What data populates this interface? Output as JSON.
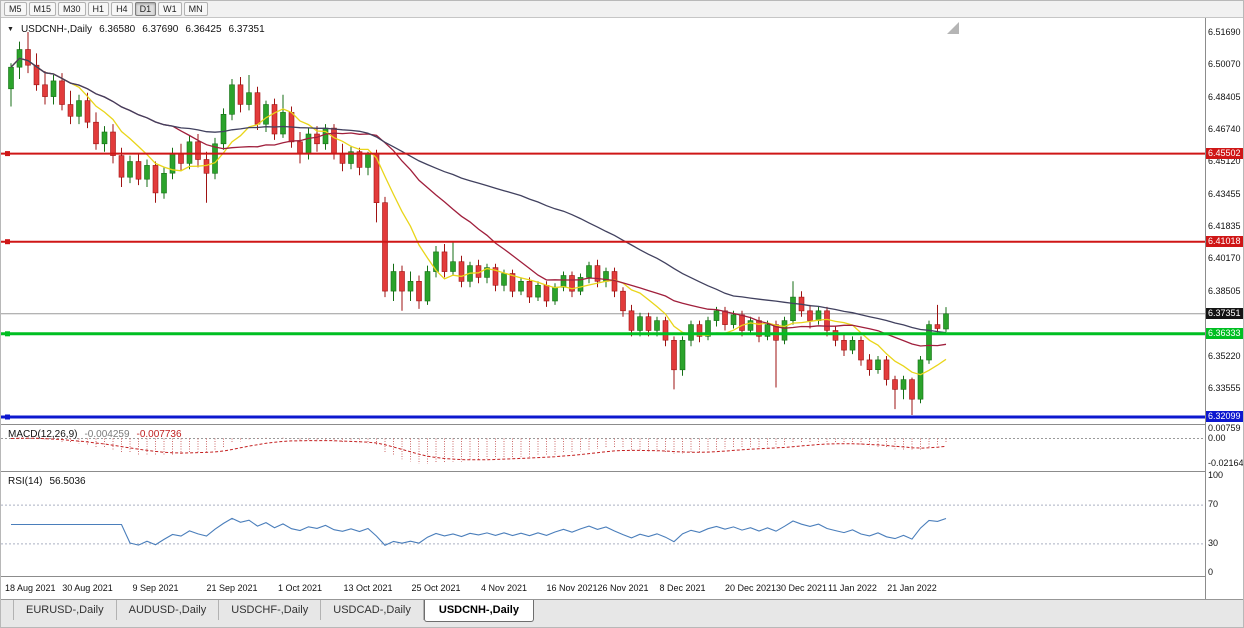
{
  "toolbar": {
    "timeframes": [
      {
        "label": "M5",
        "active": false
      },
      {
        "label": "M15",
        "active": false
      },
      {
        "label": "M30",
        "active": false
      },
      {
        "label": "H1",
        "active": false
      },
      {
        "label": "H4",
        "active": false
      },
      {
        "label": "D1",
        "active": true
      },
      {
        "label": "W1",
        "active": false
      },
      {
        "label": "MN",
        "active": false
      }
    ]
  },
  "chart": {
    "symbol_label": "USDCNH-,Daily",
    "ohlc": {
      "open": "6.36580",
      "high": "6.37690",
      "low": "6.36425",
      "close": "6.37351"
    },
    "colors": {
      "up_fill": "#2ba32b",
      "up_stroke": "#146e14",
      "down_fill": "#e23b3b",
      "down_stroke": "#9e1212"
    },
    "hlines": [
      {
        "price": 6.45502,
        "label": "6.45502",
        "color": "#cf1616",
        "width": 2
      },
      {
        "price": 6.41018,
        "label": "6.41018",
        "color": "#cf1616",
        "width": 2
      },
      {
        "price": 6.36333,
        "label": "6.36333",
        "color": "#00bf22",
        "width": 3
      },
      {
        "price": 6.32099,
        "label": "6.32099",
        "color": "#0d18cf",
        "width": 3
      }
    ],
    "current_price": {
      "price": 6.37351,
      "label": "6.37351",
      "line_color": "#9a9a9a",
      "badge_color": "#141414"
    },
    "price_ticks": [
      "6.51690",
      "6.50070",
      "6.48405",
      "6.46740",
      "6.45120",
      "6.43455",
      "6.41835",
      "6.40170",
      "6.38505",
      "6.35220",
      "6.33555"
    ],
    "ma": [
      {
        "period": 8,
        "color": "#e9d51a"
      },
      {
        "period": 20,
        "color": "#a01f3c"
      },
      {
        "period": 42,
        "color": "#41415f"
      }
    ]
  },
  "chart_data": {
    "type": "candlestick",
    "symbol": "USDCNH",
    "timeframe": "Daily",
    "y_range": [
      6.3174,
      6.525
    ],
    "candles": [
      [
        6.488,
        6.501,
        6.479,
        6.499
      ],
      [
        6.499,
        6.512,
        6.493,
        6.508
      ],
      [
        6.508,
        6.5169,
        6.496,
        6.5
      ],
      [
        6.5,
        6.506,
        6.487,
        6.49
      ],
      [
        6.49,
        6.497,
        6.48,
        6.484
      ],
      [
        6.484,
        6.495,
        6.48,
        6.492
      ],
      [
        6.492,
        6.496,
        6.477,
        6.48
      ],
      [
        6.48,
        6.487,
        6.47,
        6.474
      ],
      [
        6.474,
        6.485,
        6.47,
        6.482
      ],
      [
        6.482,
        6.486,
        6.468,
        6.471
      ],
      [
        6.471,
        6.476,
        6.457,
        6.46
      ],
      [
        6.46,
        6.469,
        6.456,
        6.466
      ],
      [
        6.466,
        6.47,
        6.45,
        6.454
      ],
      [
        6.454,
        6.458,
        6.438,
        6.443
      ],
      [
        6.443,
        6.454,
        6.44,
        6.451
      ],
      [
        6.451,
        6.455,
        6.439,
        6.442
      ],
      [
        6.442,
        6.452,
        6.438,
        6.449
      ],
      [
        6.449,
        6.451,
        6.43,
        6.435
      ],
      [
        6.435,
        6.448,
        6.432,
        6.445
      ],
      [
        6.445,
        6.458,
        6.442,
        6.455
      ],
      [
        6.455,
        6.46,
        6.446,
        6.45
      ],
      [
        6.45,
        6.464,
        6.447,
        6.461
      ],
      [
        6.461,
        6.465,
        6.448,
        6.452
      ],
      [
        6.452,
        6.456,
        6.43,
        6.445
      ],
      [
        6.445,
        6.463,
        6.442,
        6.46
      ],
      [
        6.46,
        6.478,
        6.457,
        6.475
      ],
      [
        6.475,
        6.493,
        6.472,
        6.49
      ],
      [
        6.49,
        6.494,
        6.476,
        6.48
      ],
      [
        6.48,
        6.495,
        6.477,
        6.486
      ],
      [
        6.486,
        6.489,
        6.467,
        6.47
      ],
      [
        6.47,
        6.482,
        6.466,
        6.48
      ],
      [
        6.48,
        6.483,
        6.462,
        6.465
      ],
      [
        6.465,
        6.485,
        6.463,
        6.476
      ],
      [
        6.476,
        6.479,
        6.458,
        6.461
      ],
      [
        6.461,
        6.466,
        6.45,
        6.455
      ],
      [
        6.455,
        6.468,
        6.452,
        6.465
      ],
      [
        6.465,
        6.469,
        6.456,
        6.46
      ],
      [
        6.46,
        6.47,
        6.457,
        6.468
      ],
      [
        6.468,
        6.47,
        6.452,
        6.455
      ],
      [
        6.455,
        6.46,
        6.446,
        6.45
      ],
      [
        6.45,
        6.459,
        6.447,
        6.456
      ],
      [
        6.456,
        6.458,
        6.444,
        6.448
      ],
      [
        6.448,
        6.456,
        6.444,
        6.455
      ],
      [
        6.455,
        6.457,
        6.42,
        6.43
      ],
      [
        6.43,
        6.433,
        6.382,
        6.385
      ],
      [
        6.385,
        6.399,
        6.38,
        6.395
      ],
      [
        6.395,
        6.398,
        6.375,
        6.385
      ],
      [
        6.385,
        6.395,
        6.38,
        6.39
      ],
      [
        6.39,
        6.393,
        6.376,
        6.38
      ],
      [
        6.38,
        6.398,
        6.378,
        6.395
      ],
      [
        6.395,
        6.408,
        6.392,
        6.405
      ],
      [
        6.405,
        6.409,
        6.392,
        6.395
      ],
      [
        6.395,
        6.41,
        6.393,
        6.4
      ],
      [
        6.4,
        6.403,
        6.387,
        6.39
      ],
      [
        6.39,
        6.4,
        6.387,
        6.398
      ],
      [
        6.398,
        6.401,
        6.389,
        6.392
      ],
      [
        6.392,
        6.399,
        6.389,
        6.397
      ],
      [
        6.397,
        6.399,
        6.385,
        6.388
      ],
      [
        6.388,
        6.396,
        6.385,
        6.394
      ],
      [
        6.394,
        6.396,
        6.382,
        6.385
      ],
      [
        6.385,
        6.392,
        6.383,
        6.39
      ],
      [
        6.39,
        6.392,
        6.379,
        6.382
      ],
      [
        6.382,
        6.39,
        6.38,
        6.388
      ],
      [
        6.388,
        6.39,
        6.377,
        6.38
      ],
      [
        6.38,
        6.389,
        6.378,
        6.387
      ],
      [
        6.387,
        6.395,
        6.385,
        6.393
      ],
      [
        6.393,
        6.395,
        6.382,
        6.385
      ],
      [
        6.385,
        6.394,
        6.383,
        6.392
      ],
      [
        6.392,
        6.4,
        6.389,
        6.398
      ],
      [
        6.398,
        6.401,
        6.387,
        6.39
      ],
      [
        6.39,
        6.397,
        6.387,
        6.395
      ],
      [
        6.395,
        6.397,
        6.382,
        6.385
      ],
      [
        6.385,
        6.387,
        6.372,
        6.375
      ],
      [
        6.375,
        6.378,
        6.362,
        6.365
      ],
      [
        6.365,
        6.374,
        6.362,
        6.372
      ],
      [
        6.372,
        6.374,
        6.362,
        6.365
      ],
      [
        6.365,
        6.372,
        6.362,
        6.37
      ],
      [
        6.37,
        6.372,
        6.357,
        6.36
      ],
      [
        6.36,
        6.362,
        6.335,
        6.345
      ],
      [
        6.345,
        6.362,
        6.342,
        6.36
      ],
      [
        6.36,
        6.37,
        6.357,
        6.368
      ],
      [
        6.368,
        6.37,
        6.359,
        6.362
      ],
      [
        6.362,
        6.372,
        6.36,
        6.37
      ],
      [
        6.37,
        6.377,
        6.367,
        6.375
      ],
      [
        6.375,
        6.377,
        6.365,
        6.368
      ],
      [
        6.368,
        6.375,
        6.366,
        6.373
      ],
      [
        6.373,
        6.375,
        6.362,
        6.365
      ],
      [
        6.365,
        6.372,
        6.363,
        6.37
      ],
      [
        6.37,
        6.372,
        6.359,
        6.362
      ],
      [
        6.362,
        6.37,
        6.36,
        6.368
      ],
      [
        6.368,
        6.37,
        6.336,
        6.36
      ],
      [
        6.36,
        6.372,
        6.358,
        6.37
      ],
      [
        6.37,
        6.39,
        6.368,
        6.382
      ],
      [
        6.382,
        6.385,
        6.372,
        6.375
      ],
      [
        6.375,
        6.378,
        6.366,
        6.37
      ],
      [
        6.37,
        6.377,
        6.368,
        6.375
      ],
      [
        6.375,
        6.377,
        6.362,
        6.365
      ],
      [
        6.365,
        6.367,
        6.357,
        6.36
      ],
      [
        6.36,
        6.363,
        6.352,
        6.355
      ],
      [
        6.355,
        6.362,
        6.353,
        6.36
      ],
      [
        6.36,
        6.362,
        6.347,
        6.35
      ],
      [
        6.35,
        6.353,
        6.342,
        6.345
      ],
      [
        6.345,
        6.352,
        6.343,
        6.35
      ],
      [
        6.35,
        6.352,
        6.337,
        6.34
      ],
      [
        6.34,
        6.342,
        6.325,
        6.335
      ],
      [
        6.335,
        6.342,
        6.33,
        6.34
      ],
      [
        6.34,
        6.341,
        6.322,
        6.33
      ],
      [
        6.33,
        6.352,
        6.328,
        6.35
      ],
      [
        6.35,
        6.37,
        6.348,
        6.368
      ],
      [
        6.368,
        6.378,
        6.364,
        6.366
      ],
      [
        6.3658,
        6.3769,
        6.36425,
        6.37351
      ]
    ],
    "x_labels": [
      {
        "index": 0,
        "label": "18 Aug 2021"
      },
      {
        "index": 9,
        "label": "30 Aug 2021"
      },
      {
        "index": 17,
        "label": "9 Sep 2021"
      },
      {
        "index": 26,
        "label": "21 Sep 2021"
      },
      {
        "index": 34,
        "label": "1 Oct 2021"
      },
      {
        "index": 42,
        "label": "13 Oct 2021"
      },
      {
        "index": 50,
        "label": "25 Oct 2021"
      },
      {
        "index": 58,
        "label": "4 Nov 2021"
      },
      {
        "index": 66,
        "label": "16 Nov 2021"
      },
      {
        "index": 72,
        "label": "26 Nov 2021"
      },
      {
        "index": 79,
        "label": "8 Dec 2021"
      },
      {
        "index": 87,
        "label": "20 Dec 2021"
      },
      {
        "index": 93,
        "label": "30 Dec 2021"
      },
      {
        "index": 99,
        "label": "11 Jan 2022"
      },
      {
        "index": 106,
        "label": "21 Jan 2022"
      }
    ]
  },
  "macd": {
    "title": "MACD(12,26,9)",
    "value_main": "-0.004259",
    "value_signal": "-0.007736",
    "axis": [
      {
        "v": 0.00759,
        "label": "0.00759"
      },
      {
        "v": 0,
        "label": "0.00"
      },
      {
        "v": -0.02164,
        "label": "-0.02164"
      }
    ]
  },
  "rsi": {
    "title": "RSI(14)",
    "value": "56.5036",
    "levels": [
      {
        "v": 100,
        "label": "100",
        "dashed": false
      },
      {
        "v": 70,
        "label": "70",
        "dashed": true
      },
      {
        "v": 30,
        "label": "30",
        "dashed": true
      },
      {
        "v": 0,
        "label": "0",
        "dashed": false
      }
    ],
    "line_color": "#4a7ebb"
  },
  "tabs": [
    {
      "label": "EURUSD-,Daily",
      "active": false
    },
    {
      "label": "AUDUSD-,Daily",
      "active": false
    },
    {
      "label": "USDCHF-,Daily",
      "active": false
    },
    {
      "label": "USDCAD-,Daily",
      "active": false
    },
    {
      "label": "USDCNH-,Daily",
      "active": true
    }
  ]
}
